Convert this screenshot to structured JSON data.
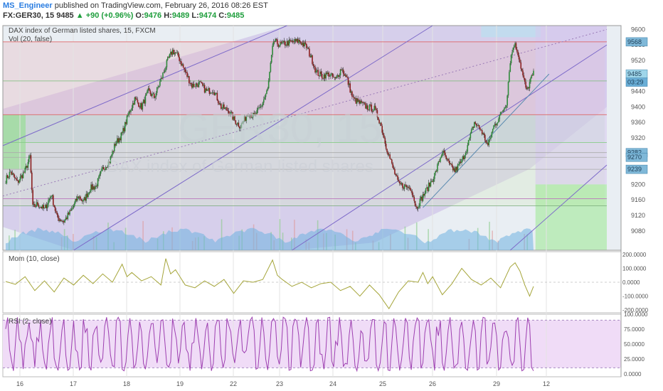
{
  "header": {
    "author": "MS_Engineer",
    "published_text": "published on TradingView.com, February 26, 2016 08:26 EST",
    "symbol": "FX:GER30, 15",
    "last": "9485",
    "change": "+90 (+0.96%)",
    "open_label": "O:",
    "open": "9476",
    "high_label": "H:",
    "high": "9489",
    "low_label": "L:",
    "low": "9474",
    "close_label": "C:",
    "close": "9485"
  },
  "chart_data": [
    {
      "type": "candlestick",
      "title": "DAX index of German listed shares, 15, FXCM",
      "watermark": "GER30, 15",
      "watermark_sub": "DAX index of German listed shares",
      "volume_label": "Vol (20, false)",
      "ylim": [
        9030,
        9610
      ],
      "yticks": [
        9080,
        9120,
        9160,
        9200,
        9240,
        9280,
        9320,
        9360,
        9400,
        9440,
        9480,
        9520,
        9560,
        9600
      ],
      "price_badges": [
        {
          "value": 9568,
          "label": "9568"
        },
        {
          "value": 9485,
          "label": "9485"
        },
        {
          "value": 9464,
          "label": "03:29"
        },
        {
          "value": 9282,
          "label": "9282"
        },
        {
          "value": 9270,
          "label": "9270"
        },
        {
          "value": 9239,
          "label": "9239"
        }
      ],
      "horizontal_levels": [
        9568,
        9467,
        9380,
        9308,
        9282,
        9270,
        9239,
        9163,
        9145
      ],
      "path_close": [
        [
          0,
          9212
        ],
        [
          5,
          9232
        ],
        [
          12,
          9205
        ],
        [
          20,
          9235
        ],
        [
          25,
          9272
        ],
        [
          28,
          9140
        ],
        [
          33,
          9150
        ],
        [
          40,
          9135
        ],
        [
          47,
          9175
        ],
        [
          53,
          9114
        ],
        [
          60,
          9105
        ],
        [
          67,
          9130
        ],
        [
          75,
          9170
        ],
        [
          80,
          9155
        ],
        [
          87,
          9190
        ],
        [
          93,
          9195
        ],
        [
          100,
          9240
        ],
        [
          107,
          9260
        ],
        [
          113,
          9305
        ],
        [
          120,
          9330
        ],
        [
          127,
          9385
        ],
        [
          133,
          9420
        ],
        [
          140,
          9400
        ],
        [
          147,
          9440
        ],
        [
          153,
          9425
        ],
        [
          160,
          9470
        ],
        [
          167,
          9520
        ],
        [
          172,
          9545
        ],
        [
          178,
          9530
        ],
        [
          185,
          9490
        ],
        [
          192,
          9455
        ],
        [
          200,
          9460
        ],
        [
          207,
          9440
        ],
        [
          214,
          9445
        ],
        [
          222,
          9400
        ],
        [
          230,
          9390
        ],
        [
          236,
          9365
        ],
        [
          242,
          9350
        ],
        [
          250,
          9385
        ],
        [
          256,
          9375
        ],
        [
          263,
          9400
        ],
        [
          270,
          9445
        ],
        [
          276,
          9570
        ],
        [
          283,
          9560
        ],
        [
          290,
          9565
        ],
        [
          297,
          9568
        ],
        [
          303,
          9570
        ],
        [
          310,
          9555
        ],
        [
          316,
          9520
        ],
        [
          320,
          9490
        ],
        [
          326,
          9480
        ],
        [
          333,
          9485
        ],
        [
          340,
          9470
        ],
        [
          346,
          9500
        ],
        [
          352,
          9470
        ],
        [
          358,
          9420
        ],
        [
          365,
          9410
        ],
        [
          372,
          9400
        ],
        [
          380,
          9395
        ],
        [
          386,
          9360
        ],
        [
          392,
          9300
        ],
        [
          398,
          9250
        ],
        [
          405,
          9200
        ],
        [
          412,
          9195
        ],
        [
          418,
          9190
        ],
        [
          423,
          9140
        ],
        [
          430,
          9170
        ],
        [
          437,
          9200
        ],
        [
          443,
          9230
        ],
        [
          450,
          9285
        ],
        [
          457,
          9250
        ],
        [
          463,
          9235
        ],
        [
          470,
          9260
        ],
        [
          476,
          9300
        ],
        [
          483,
          9360
        ],
        [
          490,
          9340
        ],
        [
          497,
          9300
        ],
        [
          503,
          9350
        ],
        [
          510,
          9380
        ],
        [
          516,
          9410
        ],
        [
          520,
          9520
        ],
        [
          524,
          9565
        ],
        [
          528,
          9540
        ],
        [
          533,
          9480
        ],
        [
          537,
          9440
        ],
        [
          541,
          9470
        ],
        [
          544,
          9485
        ]
      ],
      "x_ticks": [
        {
          "label": "16",
          "i": 20
        },
        {
          "label": "17",
          "i": 95
        },
        {
          "label": "18",
          "i": 170
        },
        {
          "label": "19",
          "i": 245
        },
        {
          "label": "22",
          "i": 320
        },
        {
          "label": "23",
          "i": 385
        },
        {
          "label": "24",
          "i": 460
        },
        {
          "label": "25",
          "i": 530
        },
        {
          "label": "26",
          "i": 600
        },
        {
          "label": "29",
          "i": 690
        },
        {
          "label": "12",
          "i": 760
        }
      ]
    },
    {
      "type": "line",
      "title": "Mom (10, close)",
      "ylim": [
        -220,
        220
      ],
      "yticks": [
        200,
        100,
        0,
        -100,
        -200
      ],
      "ytick_labels": [
        "200.0000",
        "100.0000",
        "0.0000",
        "-100.0000",
        "-200.0000"
      ],
      "points": [
        [
          0,
          5
        ],
        [
          10,
          -15
        ],
        [
          20,
          40
        ],
        [
          30,
          -60
        ],
        [
          40,
          10
        ],
        [
          50,
          -70
        ],
        [
          60,
          30
        ],
        [
          70,
          -20
        ],
        [
          80,
          50
        ],
        [
          90,
          -10
        ],
        [
          100,
          60
        ],
        [
          110,
          0
        ],
        [
          120,
          130
        ],
        [
          125,
          40
        ],
        [
          130,
          70
        ],
        [
          140,
          10
        ],
        [
          150,
          40
        ],
        [
          160,
          -20
        ],
        [
          165,
          170
        ],
        [
          170,
          60
        ],
        [
          175,
          90
        ],
        [
          185,
          -20
        ],
        [
          195,
          -40
        ],
        [
          205,
          10
        ],
        [
          215,
          -30
        ],
        [
          225,
          20
        ],
        [
          235,
          -80
        ],
        [
          245,
          10
        ],
        [
          255,
          0
        ],
        [
          265,
          20
        ],
        [
          275,
          160
        ],
        [
          280,
          50
        ],
        [
          285,
          20
        ],
        [
          295,
          -30
        ],
        [
          305,
          0
        ],
        [
          315,
          -40
        ],
        [
          325,
          -10
        ],
        [
          335,
          0
        ],
        [
          345,
          -60
        ],
        [
          355,
          -30
        ],
        [
          365,
          -100
        ],
        [
          375,
          -20
        ],
        [
          385,
          -90
        ],
        [
          395,
          -190
        ],
        [
          405,
          -70
        ],
        [
          415,
          10
        ],
        [
          425,
          0
        ],
        [
          430,
          70
        ],
        [
          435,
          -10
        ],
        [
          440,
          40
        ],
        [
          450,
          -90
        ],
        [
          460,
          -10
        ],
        [
          470,
          100
        ],
        [
          480,
          20
        ],
        [
          490,
          -20
        ],
        [
          500,
          30
        ],
        [
          510,
          -40
        ],
        [
          520,
          110
        ],
        [
          525,
          140
        ],
        [
          530,
          80
        ],
        [
          535,
          -20
        ],
        [
          540,
          -100
        ],
        [
          544,
          -30
        ]
      ]
    },
    {
      "type": "line",
      "title": "RSI (2, close)",
      "ylim": [
        -5,
        100
      ],
      "yticks": [
        100,
        75,
        50,
        25,
        0
      ],
      "ytick_labels": [
        "100.0000",
        "75.0000",
        "50.0000",
        "25.0000",
        "0.0000"
      ],
      "bands": [
        10,
        90
      ]
    }
  ]
}
